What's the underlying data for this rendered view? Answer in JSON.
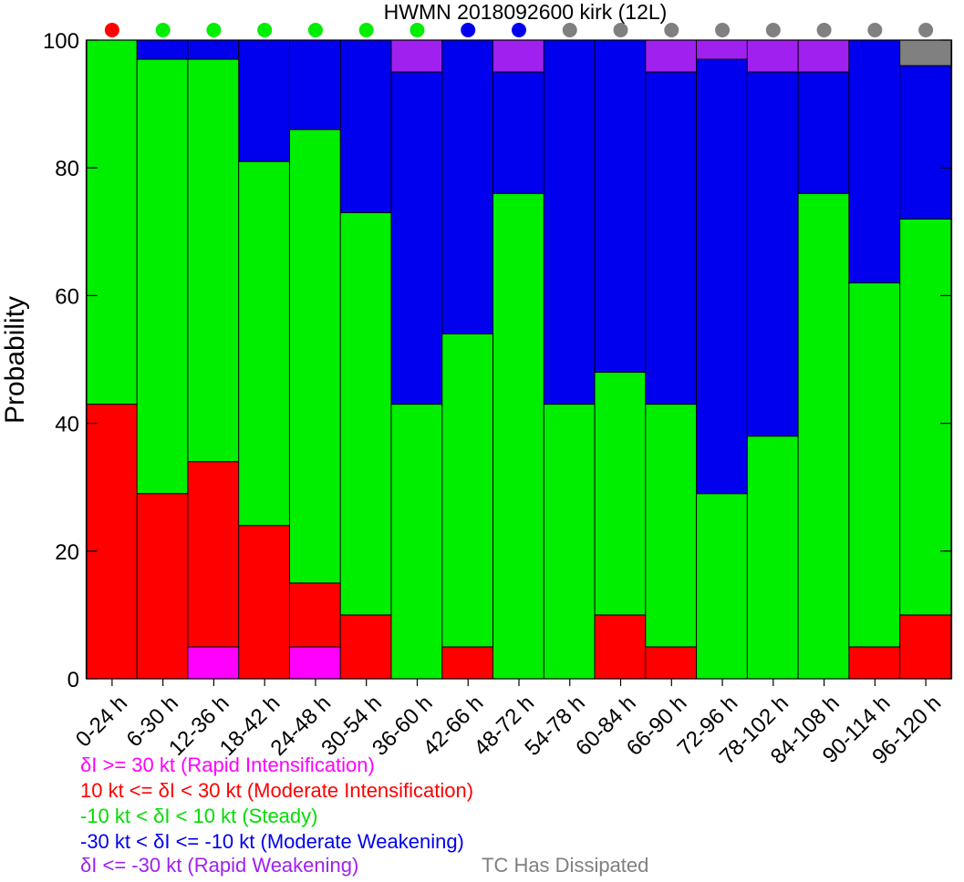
{
  "chart_data": {
    "type": "bar",
    "stacked": true,
    "title": "HWMN 2018092600 kirk (12L)",
    "xlabel": "",
    "ylabel": "Probability",
    "ylim": [
      0,
      100
    ],
    "yticks": [
      0,
      20,
      40,
      60,
      80,
      100
    ],
    "grid": false,
    "categories": [
      "0-24 h",
      "6-30 h",
      "12-36 h",
      "18-42 h",
      "24-48 h",
      "30-54 h",
      "36-60 h",
      "42-66 h",
      "48-72 h",
      "54-78 h",
      "60-84 h",
      "66-90 h",
      "72-96 h",
      "78-102 h",
      "84-108 h",
      "90-114 h",
      "96-120 h"
    ],
    "series": [
      {
        "key": "ri",
        "color": "#ff00ff",
        "values": [
          0,
          0,
          5,
          0,
          5,
          0,
          0,
          0,
          0,
          0,
          0,
          0,
          0,
          0,
          0,
          0,
          0
        ]
      },
      {
        "key": "mi",
        "color": "#ff0000",
        "values": [
          43,
          29,
          29,
          24,
          10,
          10,
          0,
          5,
          0,
          0,
          10,
          5,
          0,
          0,
          0,
          5,
          10
        ]
      },
      {
        "key": "st",
        "color": "#00ee00",
        "values": [
          57,
          68,
          63,
          57,
          71,
          63,
          43,
          49,
          76,
          43,
          38,
          38,
          29,
          38,
          76,
          57,
          62
        ]
      },
      {
        "key": "mw",
        "color": "#0000ee",
        "values": [
          0,
          3,
          3,
          19,
          14,
          27,
          52,
          46,
          19,
          57,
          52,
          52,
          68,
          57,
          19,
          38,
          24
        ]
      },
      {
        "key": "rw",
        "color": "#a020f0",
        "values": [
          0,
          0,
          0,
          0,
          0,
          0,
          5,
          0,
          5,
          0,
          0,
          5,
          3,
          5,
          5,
          0,
          0
        ]
      },
      {
        "key": "dis",
        "color": "#808080",
        "values": [
          0,
          0,
          0,
          0,
          0,
          0,
          0,
          0,
          0,
          0,
          0,
          0,
          0,
          0,
          0,
          0,
          4
        ]
      }
    ],
    "top_markers": [
      "#ff0000",
      "#00ee00",
      "#00ee00",
      "#00ee00",
      "#00ee00",
      "#00ee00",
      "#00ee00",
      "#0000ee",
      "#0000ee",
      "#808080",
      "#808080",
      "#808080",
      "#808080",
      "#808080",
      "#808080",
      "#808080",
      "#808080"
    ],
    "legend_placement": "bottom",
    "legend": [
      {
        "text": "δI >= 30 kt (Rapid Intensification)",
        "color": "#ff00ff"
      },
      {
        "text": "10 kt <= δI < 30 kt (Moderate Intensification)",
        "color": "#ff0000"
      },
      {
        "text": "-10 kt < δI < 10 kt (Steady)",
        "color": "#00dd00"
      },
      {
        "text": "-30 kt < δI <= -10 kt (Moderate Weakening)",
        "color": "#0000ee"
      },
      {
        "text": "δI <= -30 kt (Rapid Weakening)",
        "color": "#a020f0"
      }
    ],
    "dissipated_label": {
      "text": "TC Has Dissipated",
      "color": "#808080"
    }
  }
}
